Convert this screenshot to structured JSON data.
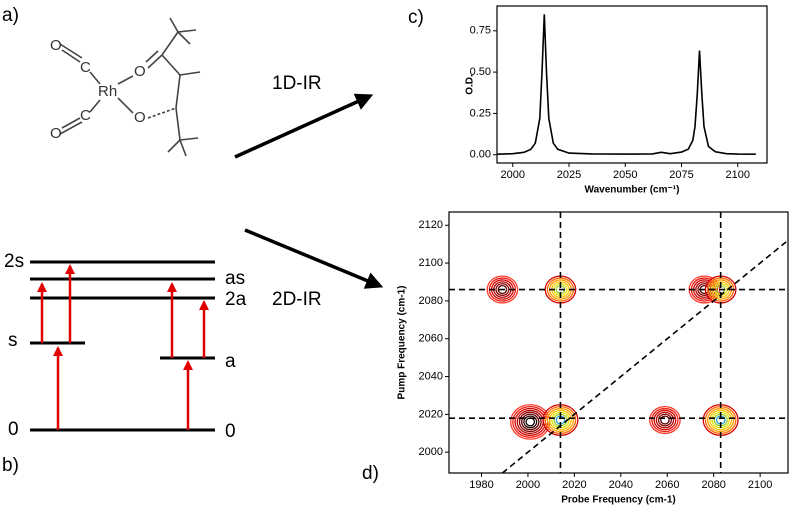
{
  "panels": {
    "a": "a)",
    "b": "b)",
    "c": "c)",
    "d": "d)"
  },
  "molecule": {
    "atoms": [
      "O",
      "C",
      "Rh",
      "C",
      "O",
      "O",
      "O"
    ]
  },
  "arrows": {
    "one_d": "1D-IR",
    "two_d": "2D-IR"
  },
  "levels": {
    "left": [
      "2s",
      "as",
      "2a",
      "s",
      "0"
    ],
    "right": [
      "a",
      "0"
    ]
  },
  "chart_data": [
    {
      "type": "line",
      "xlabel": "Wavenumber (cm⁻¹)",
      "ylabel": "O.D.",
      "color": "#000000",
      "x": [
        1993,
        2000,
        2005,
        2008,
        2010,
        2012,
        2013,
        2014,
        2015,
        2016,
        2018,
        2020,
        2025,
        2035,
        2050,
        2062,
        2066,
        2070,
        2075,
        2078,
        2080,
        2081,
        2082,
        2083,
        2084,
        2085,
        2087,
        2090,
        2095,
        2100,
        2108
      ],
      "values": [
        0.003,
        0.006,
        0.015,
        0.033,
        0.07,
        0.22,
        0.5,
        0.85,
        0.5,
        0.22,
        0.07,
        0.033,
        0.01,
        0.005,
        0.004,
        0.005,
        0.015,
        0.006,
        0.016,
        0.034,
        0.087,
        0.17,
        0.37,
        0.63,
        0.37,
        0.17,
        0.05,
        0.018,
        0.006,
        0.004,
        0.003
      ],
      "xlim": [
        1993,
        2113
      ],
      "xticks": [
        2000,
        2025,
        2050,
        2075,
        2100
      ],
      "ylim": [
        -0.05,
        0.9
      ],
      "yticks": [
        {
          "value": 0,
          "label": "0.00"
        },
        {
          "value": 0.25,
          "label": "0.25"
        },
        {
          "value": 0.5,
          "label": "0.50"
        },
        {
          "value": 0.75,
          "label": "0.75"
        }
      ]
    },
    {
      "type": "contour",
      "xlabel": "Probe Frequency (cm-1)",
      "ylabel": "Pump Frequency (cm-1)",
      "x": [
        1989,
        2001,
        2059,
        2076,
        2014,
        2014,
        2083,
        2083
      ],
      "y": [
        2086,
        2016,
        2017,
        2086,
        2086,
        2017,
        2086,
        2017
      ],
      "values": [
        0.7,
        1.0,
        0.8,
        0.7,
        -0.8,
        -0.9,
        -0.8,
        -0.9
      ],
      "colors": {
        "positive": "#d40000",
        "negative": "#f5c400"
      },
      "guides": {
        "x": [
          2014,
          2083
        ],
        "y": [
          2018,
          2086
        ]
      },
      "xlim": [
        1966,
        2112
      ],
      "xticks": [
        1980,
        2000,
        2020,
        2040,
        2060,
        2080,
        2100
      ],
      "ylim": [
        1989,
        2127
      ],
      "yticks": [
        2000,
        2020,
        2040,
        2060,
        2080,
        2100,
        2120
      ]
    }
  ]
}
